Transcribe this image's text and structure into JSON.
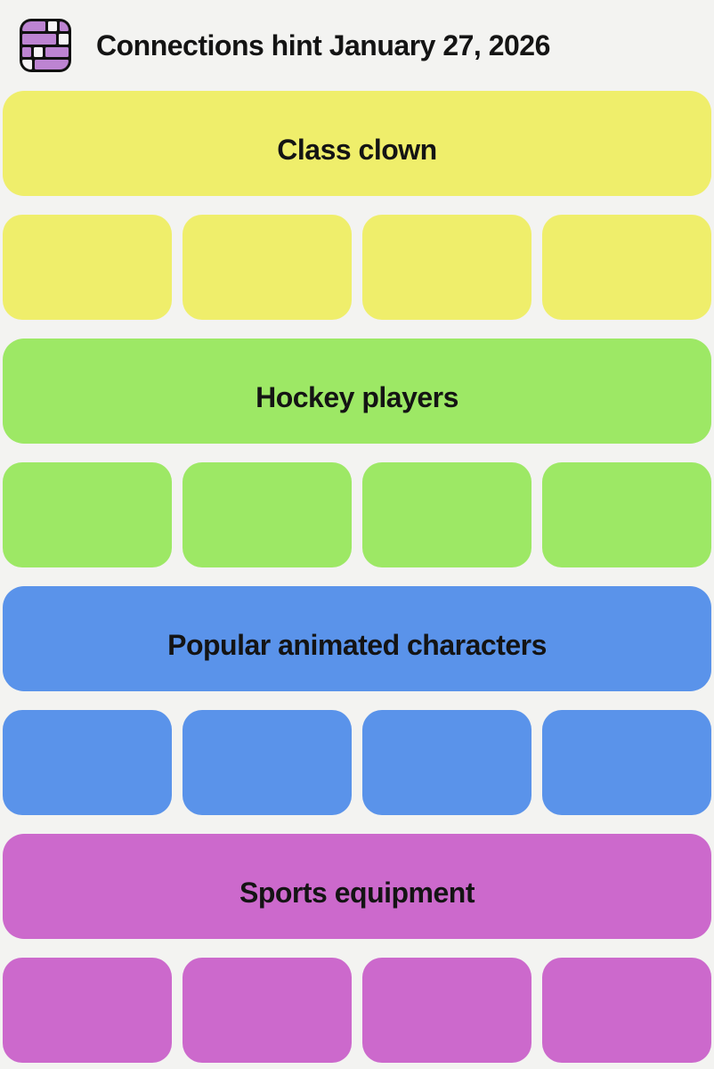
{
  "header": {
    "title": "Connections hint January 27, 2026",
    "logo_icon": "connections-bricks-icon"
  },
  "colors": {
    "background": "#f3f3f1",
    "text": "#141414",
    "logo_purple": "#bd84d2",
    "logo_white": "#f6f4f6",
    "yellow": "#efee6b",
    "green": "#9de865",
    "blue": "#5a93ea",
    "magenta": "#cc69cc"
  },
  "groups": [
    {
      "label": "Class clown",
      "color": "#efee6b",
      "tile_count": 4
    },
    {
      "label": "Hockey players",
      "color": "#9de865",
      "tile_count": 4
    },
    {
      "label": "Popular animated characters",
      "color": "#5a93ea",
      "tile_count": 4
    },
    {
      "label": "Sports equipment",
      "color": "#cc69cc",
      "tile_count": 4
    }
  ]
}
